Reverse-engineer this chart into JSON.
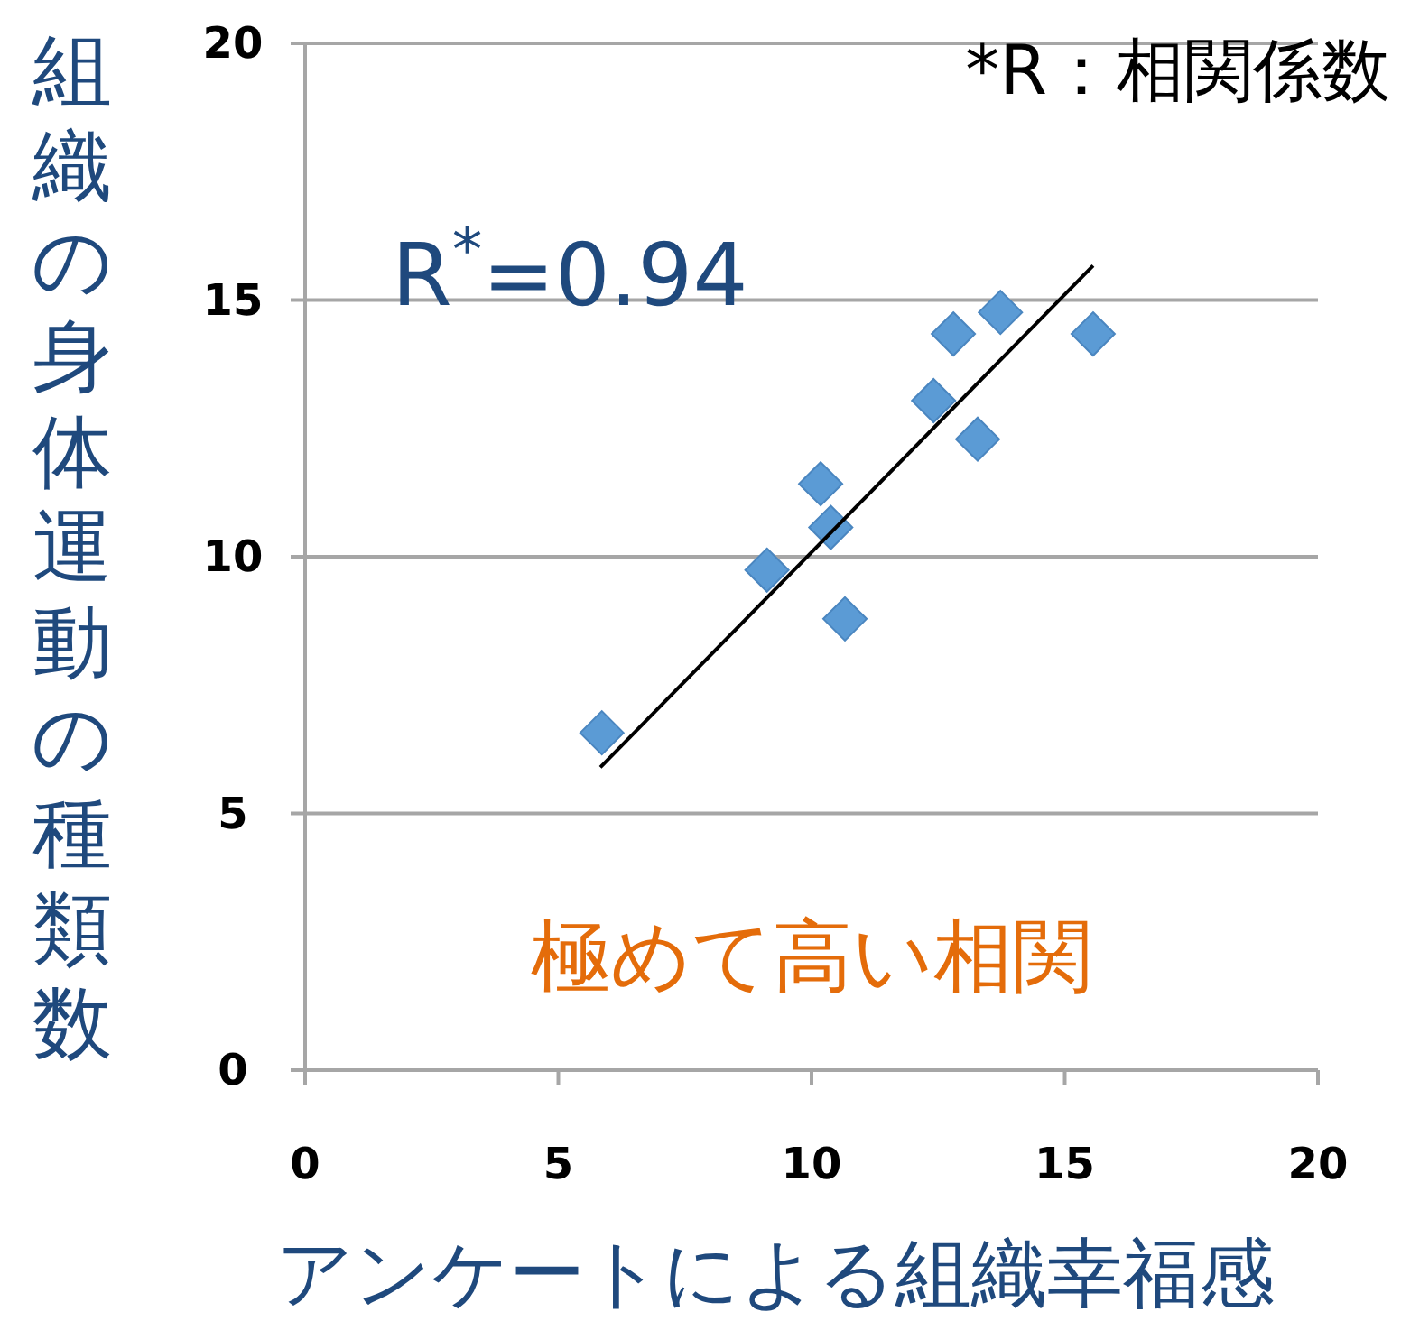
{
  "chart_data": {
    "type": "scatter",
    "xlabel": "アンケートによる組織幸福感",
    "ylabel": "組織の身体運動の種類数",
    "annotations": [
      "*R：相関係数",
      "R$^{*}$=0.94",
      "極めて高い相関"
    ],
    "series": [
      {
        "type": "scatter",
        "color": "#5b9bd5",
        "marker": "diamond",
        "x": [
          5.86,
          9.12,
          10.18,
          10.38,
          10.66,
          12.41,
          12.8,
          13.28,
          13.73,
          15.56
        ],
        "values": [
          6.57,
          9.74,
          11.42,
          10.57,
          8.79,
          13.04,
          14.34,
          12.29,
          14.76,
          14.34
        ]
      },
      {
        "type": "line",
        "color": "#000000",
        "line_style": "solid",
        "x": [
          5.83,
          15.56
        ],
        "values": [
          5.9,
          15.67
        ]
      }
    ],
    "xlim": [
      0,
      20
    ],
    "ylim": [
      0,
      20
    ],
    "xticks": [
      0,
      5,
      10,
      15,
      20
    ],
    "yticks": [
      0,
      5,
      10,
      15,
      20
    ],
    "grid": "y"
  }
}
